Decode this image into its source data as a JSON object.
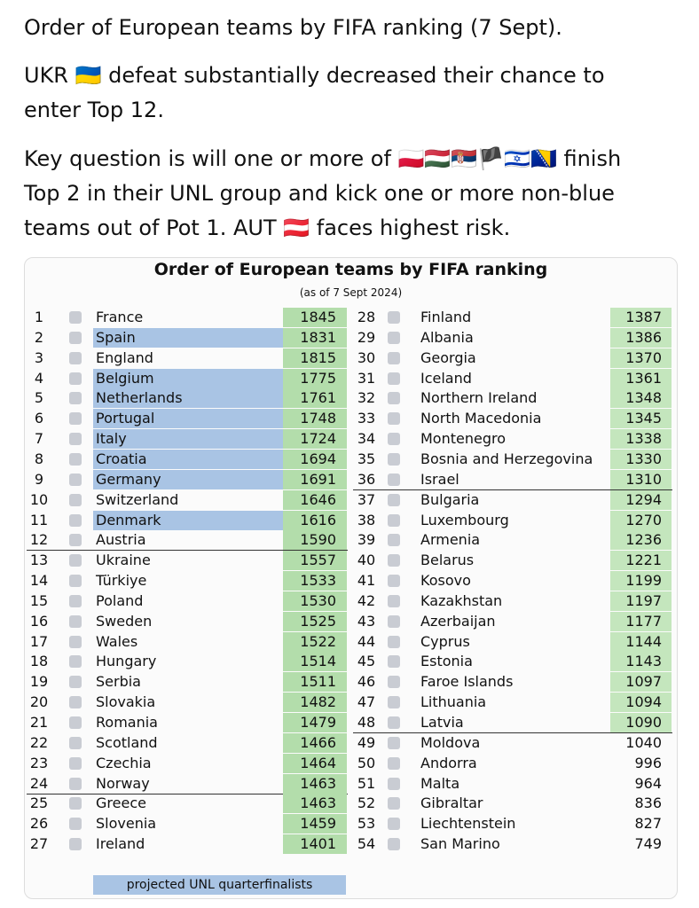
{
  "post": {
    "paragraphs": [
      "Order of European teams by FIFA ranking (7 Sept).",
      "UKR 🇺🇦 defeat substantially decreased their chance to enter Top 12.",
      "Key question is will one or more of 🇵🇱🇭🇺🇷🇸🏴🇮🇱🇧🇦 finish Top 2 in their UNL group and kick one or more non-blue teams out of Pot 1. AUT 🇦🇹 faces highest risk."
    ]
  },
  "table": {
    "title": "Order of European teams by FIFA ranking",
    "subtitle": "(as of 7 Sept 2024)",
    "legend": "projected UNL quarterfinalists",
    "rows": [
      {
        "rank": 1,
        "team": "France",
        "points": 1845,
        "qf": false,
        "shaded": true,
        "line_below": false
      },
      {
        "rank": 2,
        "team": "Spain",
        "points": 1831,
        "qf": true,
        "shaded": true,
        "line_below": false
      },
      {
        "rank": 3,
        "team": "England",
        "points": 1815,
        "qf": false,
        "shaded": true,
        "line_below": false
      },
      {
        "rank": 4,
        "team": "Belgium",
        "points": 1775,
        "qf": true,
        "shaded": true,
        "line_below": false
      },
      {
        "rank": 5,
        "team": "Netherlands",
        "points": 1761,
        "qf": true,
        "shaded": true,
        "line_below": false
      },
      {
        "rank": 6,
        "team": "Portugal",
        "points": 1748,
        "qf": true,
        "shaded": true,
        "line_below": false
      },
      {
        "rank": 7,
        "team": "Italy",
        "points": 1724,
        "qf": true,
        "shaded": true,
        "line_below": false
      },
      {
        "rank": 8,
        "team": "Croatia",
        "points": 1694,
        "qf": true,
        "shaded": true,
        "line_below": false
      },
      {
        "rank": 9,
        "team": "Germany",
        "points": 1691,
        "qf": true,
        "shaded": true,
        "line_below": false
      },
      {
        "rank": 10,
        "team": "Switzerland",
        "points": 1646,
        "qf": false,
        "shaded": true,
        "line_below": false
      },
      {
        "rank": 11,
        "team": "Denmark",
        "points": 1616,
        "qf": true,
        "shaded": true,
        "line_below": false
      },
      {
        "rank": 12,
        "team": "Austria",
        "points": 1590,
        "qf": false,
        "shaded": true,
        "line_below": true
      },
      {
        "rank": 13,
        "team": "Ukraine",
        "points": 1557,
        "qf": false,
        "shaded": true,
        "line_below": false
      },
      {
        "rank": 14,
        "team": "Türkiye",
        "points": 1533,
        "qf": false,
        "shaded": true,
        "line_below": false
      },
      {
        "rank": 15,
        "team": "Poland",
        "points": 1530,
        "qf": false,
        "shaded": true,
        "line_below": false
      },
      {
        "rank": 16,
        "team": "Sweden",
        "points": 1525,
        "qf": false,
        "shaded": true,
        "line_below": false
      },
      {
        "rank": 17,
        "team": "Wales",
        "points": 1522,
        "qf": false,
        "shaded": true,
        "line_below": false
      },
      {
        "rank": 18,
        "team": "Hungary",
        "points": 1514,
        "qf": false,
        "shaded": true,
        "line_below": false
      },
      {
        "rank": 19,
        "team": "Serbia",
        "points": 1511,
        "qf": false,
        "shaded": true,
        "line_below": false
      },
      {
        "rank": 20,
        "team": "Slovakia",
        "points": 1482,
        "qf": false,
        "shaded": true,
        "line_below": false
      },
      {
        "rank": 21,
        "team": "Romania",
        "points": 1479,
        "qf": false,
        "shaded": true,
        "line_below": false
      },
      {
        "rank": 22,
        "team": "Scotland",
        "points": 1466,
        "qf": false,
        "shaded": true,
        "line_below": false
      },
      {
        "rank": 23,
        "team": "Czechia",
        "points": 1464,
        "qf": false,
        "shaded": true,
        "line_below": false
      },
      {
        "rank": 24,
        "team": "Norway",
        "points": 1463,
        "qf": false,
        "shaded": true,
        "line_below": true
      },
      {
        "rank": 25,
        "team": "Greece",
        "points": 1463,
        "qf": false,
        "shaded": true,
        "line_below": false
      },
      {
        "rank": 26,
        "team": "Slovenia",
        "points": 1459,
        "qf": false,
        "shaded": true,
        "line_below": false
      },
      {
        "rank": 27,
        "team": "Ireland",
        "points": 1401,
        "qf": false,
        "shaded": true,
        "line_below": false
      },
      {
        "rank": 28,
        "team": "Finland",
        "points": 1387,
        "qf": false,
        "shaded": true,
        "line_below": false
      },
      {
        "rank": 29,
        "team": "Albania",
        "points": 1386,
        "qf": false,
        "shaded": true,
        "line_below": false
      },
      {
        "rank": 30,
        "team": "Georgia",
        "points": 1370,
        "qf": false,
        "shaded": true,
        "line_below": false
      },
      {
        "rank": 31,
        "team": "Iceland",
        "points": 1361,
        "qf": false,
        "shaded": true,
        "line_below": false
      },
      {
        "rank": 32,
        "team": "Northern Ireland",
        "points": 1348,
        "qf": false,
        "shaded": true,
        "line_below": false
      },
      {
        "rank": 33,
        "team": "North Macedonia",
        "points": 1345,
        "qf": false,
        "shaded": true,
        "line_below": false
      },
      {
        "rank": 34,
        "team": "Montenegro",
        "points": 1338,
        "qf": false,
        "shaded": true,
        "line_below": false
      },
      {
        "rank": 35,
        "team": "Bosnia and Herzegovina",
        "points": 1330,
        "qf": false,
        "shaded": true,
        "line_below": false
      },
      {
        "rank": 36,
        "team": "Israel",
        "points": 1310,
        "qf": false,
        "shaded": true,
        "line_below": true
      },
      {
        "rank": 37,
        "team": "Bulgaria",
        "points": 1294,
        "qf": false,
        "shaded": true,
        "line_below": false
      },
      {
        "rank": 38,
        "team": "Luxembourg",
        "points": 1270,
        "qf": false,
        "shaded": true,
        "line_below": false
      },
      {
        "rank": 39,
        "team": "Armenia",
        "points": 1236,
        "qf": false,
        "shaded": true,
        "line_below": false
      },
      {
        "rank": 40,
        "team": "Belarus",
        "points": 1221,
        "qf": false,
        "shaded": true,
        "line_below": false
      },
      {
        "rank": 41,
        "team": "Kosovo",
        "points": 1199,
        "qf": false,
        "shaded": true,
        "line_below": false
      },
      {
        "rank": 42,
        "team": "Kazakhstan",
        "points": 1197,
        "qf": false,
        "shaded": true,
        "line_below": false
      },
      {
        "rank": 43,
        "team": "Azerbaijan",
        "points": 1177,
        "qf": false,
        "shaded": true,
        "line_below": false
      },
      {
        "rank": 44,
        "team": "Cyprus",
        "points": 1144,
        "qf": false,
        "shaded": true,
        "line_below": false
      },
      {
        "rank": 45,
        "team": "Estonia",
        "points": 1143,
        "qf": false,
        "shaded": true,
        "line_below": false
      },
      {
        "rank": 46,
        "team": "Faroe Islands",
        "points": 1097,
        "qf": false,
        "shaded": true,
        "line_below": false
      },
      {
        "rank": 47,
        "team": "Lithuania",
        "points": 1094,
        "qf": false,
        "shaded": true,
        "line_below": false
      },
      {
        "rank": 48,
        "team": "Latvia",
        "points": 1090,
        "qf": false,
        "shaded": true,
        "line_below": true
      },
      {
        "rank": 49,
        "team": "Moldova",
        "points": 1040,
        "qf": false,
        "shaded": false,
        "line_below": false
      },
      {
        "rank": 50,
        "team": "Andorra",
        "points": 996,
        "qf": false,
        "shaded": false,
        "line_below": false
      },
      {
        "rank": 51,
        "team": "Malta",
        "points": 964,
        "qf": false,
        "shaded": false,
        "line_below": false
      },
      {
        "rank": 52,
        "team": "Gibraltar",
        "points": 836,
        "qf": false,
        "shaded": false,
        "line_below": false
      },
      {
        "rank": 53,
        "team": "Liechtenstein",
        "points": 827,
        "qf": false,
        "shaded": false,
        "line_below": false
      },
      {
        "rank": 54,
        "team": "San Marino",
        "points": 749,
        "qf": false,
        "shaded": false,
        "line_below": false
      }
    ]
  }
}
